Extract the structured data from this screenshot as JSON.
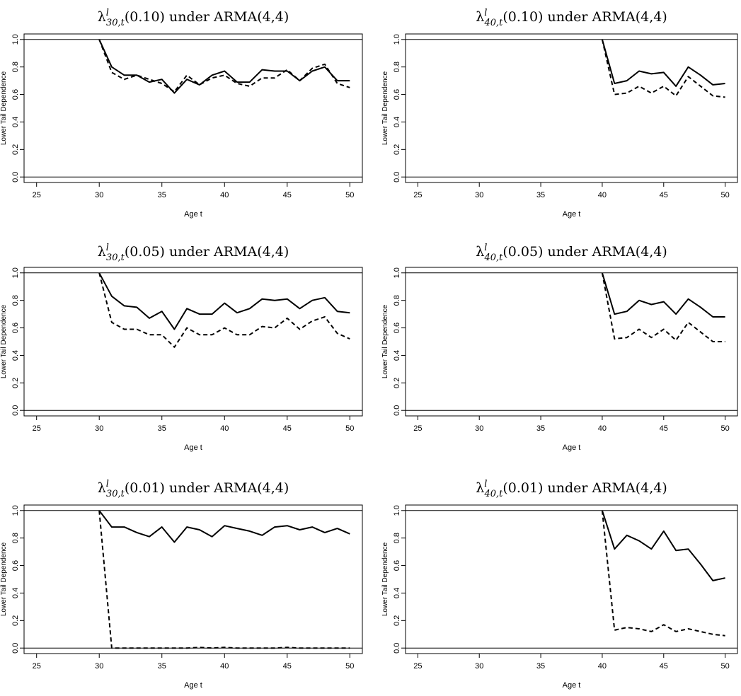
{
  "chart_data": [
    {
      "type": "line",
      "title": {
        "sup": "l",
        "sub": "30,t",
        "arg": "(0.10)",
        "rest": " under ARMA(4,4)"
      },
      "xlabel": "Age t",
      "ylabel": "Lower Tail Dependence",
      "xlim": [
        24,
        51
      ],
      "ylim": [
        -0.04,
        1.04
      ],
      "xticks": [
        25,
        30,
        35,
        40,
        45,
        50
      ],
      "yticks": [
        "0.0",
        "0.2",
        "0.4",
        "0.6",
        "0.8",
        "1.0"
      ],
      "hlines": [
        0,
        1
      ],
      "x": [
        30,
        31,
        32,
        33,
        34,
        35,
        36,
        37,
        38,
        39,
        40,
        41,
        42,
        43,
        44,
        45,
        46,
        47,
        48,
        49,
        50
      ],
      "series": [
        {
          "style": "solid",
          "values": [
            1.0,
            0.8,
            0.74,
            0.74,
            0.69,
            0.71,
            0.61,
            0.71,
            0.67,
            0.74,
            0.77,
            0.69,
            0.69,
            0.78,
            0.77,
            0.77,
            0.7,
            0.77,
            0.8,
            0.7,
            0.7
          ]
        },
        {
          "style": "dashed",
          "values": [
            1.0,
            0.76,
            0.71,
            0.74,
            0.71,
            0.68,
            0.62,
            0.74,
            0.67,
            0.72,
            0.74,
            0.68,
            0.66,
            0.72,
            0.72,
            0.78,
            0.7,
            0.79,
            0.82,
            0.68,
            0.65
          ]
        }
      ]
    },
    {
      "type": "line",
      "title": {
        "sup": "l",
        "sub": "40,t",
        "arg": "(0.10)",
        "rest": " under ARMA(4,4)"
      },
      "xlabel": "Age t",
      "ylabel": "Lower Tail Dependence",
      "xlim": [
        24,
        51
      ],
      "ylim": [
        -0.04,
        1.04
      ],
      "xticks": [
        25,
        30,
        35,
        40,
        45,
        50
      ],
      "yticks": [
        "0.0",
        "0.2",
        "0.4",
        "0.6",
        "0.8",
        "1.0"
      ],
      "hlines": [
        0,
        1
      ],
      "x": [
        40,
        41,
        42,
        43,
        44,
        45,
        46,
        47,
        48,
        49,
        50
      ],
      "series": [
        {
          "style": "solid",
          "values": [
            1.0,
            0.68,
            0.7,
            0.77,
            0.75,
            0.76,
            0.66,
            0.8,
            0.74,
            0.67,
            0.68
          ]
        },
        {
          "style": "dashed",
          "values": [
            1.0,
            0.6,
            0.61,
            0.66,
            0.61,
            0.66,
            0.59,
            0.73,
            0.66,
            0.59,
            0.58
          ]
        }
      ]
    },
    {
      "type": "line",
      "title": {
        "sup": "l",
        "sub": "30,t",
        "arg": "(0.05)",
        "rest": " under ARMA(4,4)"
      },
      "xlabel": "Age t",
      "ylabel": "Lower Tail Dependence",
      "xlim": [
        24,
        51
      ],
      "ylim": [
        -0.04,
        1.04
      ],
      "xticks": [
        25,
        30,
        35,
        40,
        45,
        50
      ],
      "yticks": [
        "0.0",
        "0.2",
        "0.4",
        "0.6",
        "0.8",
        "1.0"
      ],
      "hlines": [
        0,
        1
      ],
      "x": [
        30,
        31,
        32,
        33,
        34,
        35,
        36,
        37,
        38,
        39,
        40,
        41,
        42,
        43,
        44,
        45,
        46,
        47,
        48,
        49,
        50
      ],
      "series": [
        {
          "style": "solid",
          "values": [
            1.0,
            0.83,
            0.76,
            0.75,
            0.67,
            0.72,
            0.59,
            0.74,
            0.7,
            0.7,
            0.78,
            0.71,
            0.74,
            0.81,
            0.8,
            0.81,
            0.74,
            0.8,
            0.82,
            0.72,
            0.71
          ]
        },
        {
          "style": "dashed",
          "values": [
            1.0,
            0.64,
            0.59,
            0.59,
            0.55,
            0.55,
            0.46,
            0.6,
            0.55,
            0.55,
            0.6,
            0.55,
            0.55,
            0.61,
            0.6,
            0.67,
            0.59,
            0.65,
            0.68,
            0.56,
            0.52
          ]
        }
      ]
    },
    {
      "type": "line",
      "title": {
        "sup": "l",
        "sub": "40,t",
        "arg": "(0.05)",
        "rest": " under ARMA(4,4)"
      },
      "xlabel": "Age t",
      "ylabel": "Lower Tail Dependence",
      "xlim": [
        24,
        51
      ],
      "ylim": [
        -0.04,
        1.04
      ],
      "xticks": [
        25,
        30,
        35,
        40,
        45,
        50
      ],
      "yticks": [
        "0.0",
        "0.2",
        "0.4",
        "0.6",
        "0.8",
        "1.0"
      ],
      "hlines": [
        0,
        1
      ],
      "x": [
        40,
        41,
        42,
        43,
        44,
        45,
        46,
        47,
        48,
        49,
        50
      ],
      "series": [
        {
          "style": "solid",
          "values": [
            1.0,
            0.7,
            0.72,
            0.8,
            0.77,
            0.79,
            0.7,
            0.81,
            0.75,
            0.68,
            0.68
          ]
        },
        {
          "style": "dashed",
          "values": [
            1.0,
            0.52,
            0.53,
            0.59,
            0.53,
            0.59,
            0.51,
            0.64,
            0.57,
            0.5,
            0.5
          ]
        }
      ]
    },
    {
      "type": "line",
      "title": {
        "sup": "l",
        "sub": "30,t",
        "arg": "(0.01)",
        "rest": " under ARMA(4,4)"
      },
      "xlabel": "Age t",
      "ylabel": "Lower Tail Dependence",
      "xlim": [
        24,
        51
      ],
      "ylim": [
        -0.04,
        1.04
      ],
      "xticks": [
        25,
        30,
        35,
        40,
        45,
        50
      ],
      "yticks": [
        "0.0",
        "0.2",
        "0.4",
        "0.6",
        "0.8",
        "1.0"
      ],
      "hlines": [
        0,
        1
      ],
      "x": [
        30,
        31,
        32,
        33,
        34,
        35,
        36,
        37,
        38,
        39,
        40,
        41,
        42,
        43,
        44,
        45,
        46,
        47,
        48,
        49,
        50
      ],
      "series": [
        {
          "style": "solid",
          "values": [
            1.0,
            0.88,
            0.88,
            0.84,
            0.81,
            0.88,
            0.77,
            0.88,
            0.86,
            0.81,
            0.89,
            0.87,
            0.85,
            0.82,
            0.88,
            0.89,
            0.86,
            0.88,
            0.84,
            0.87,
            0.83
          ]
        },
        {
          "style": "dashed",
          "values": [
            1.0,
            0.0,
            0.0,
            0.0,
            0.0,
            0.0,
            0.0,
            0.0,
            0.005,
            0.0,
            0.005,
            0.0,
            0.0,
            0.0,
            0.0,
            0.005,
            0.0,
            0.0,
            0.0,
            0.0,
            0.0
          ]
        }
      ]
    },
    {
      "type": "line",
      "title": {
        "sup": "l",
        "sub": "40,t",
        "arg": "(0.01)",
        "rest": " under ARMA(4,4)"
      },
      "xlabel": "Age t",
      "ylabel": "Lower Tail Dependence",
      "xlim": [
        24,
        51
      ],
      "ylim": [
        -0.04,
        1.04
      ],
      "xticks": [
        25,
        30,
        35,
        40,
        45,
        50
      ],
      "yticks": [
        "0.0",
        "0.2",
        "0.4",
        "0.6",
        "0.8",
        "1.0"
      ],
      "hlines": [
        0,
        1
      ],
      "x": [
        40,
        41,
        42,
        43,
        44,
        45,
        46,
        47,
        48,
        49,
        50
      ],
      "series": [
        {
          "style": "solid",
          "values": [
            1.0,
            0.72,
            0.82,
            0.78,
            0.72,
            0.85,
            0.71,
            0.72,
            0.61,
            0.49,
            0.51
          ]
        },
        {
          "style": "dashed",
          "values": [
            1.0,
            0.13,
            0.15,
            0.14,
            0.12,
            0.17,
            0.12,
            0.14,
            0.12,
            0.1,
            0.09
          ]
        }
      ]
    }
  ]
}
